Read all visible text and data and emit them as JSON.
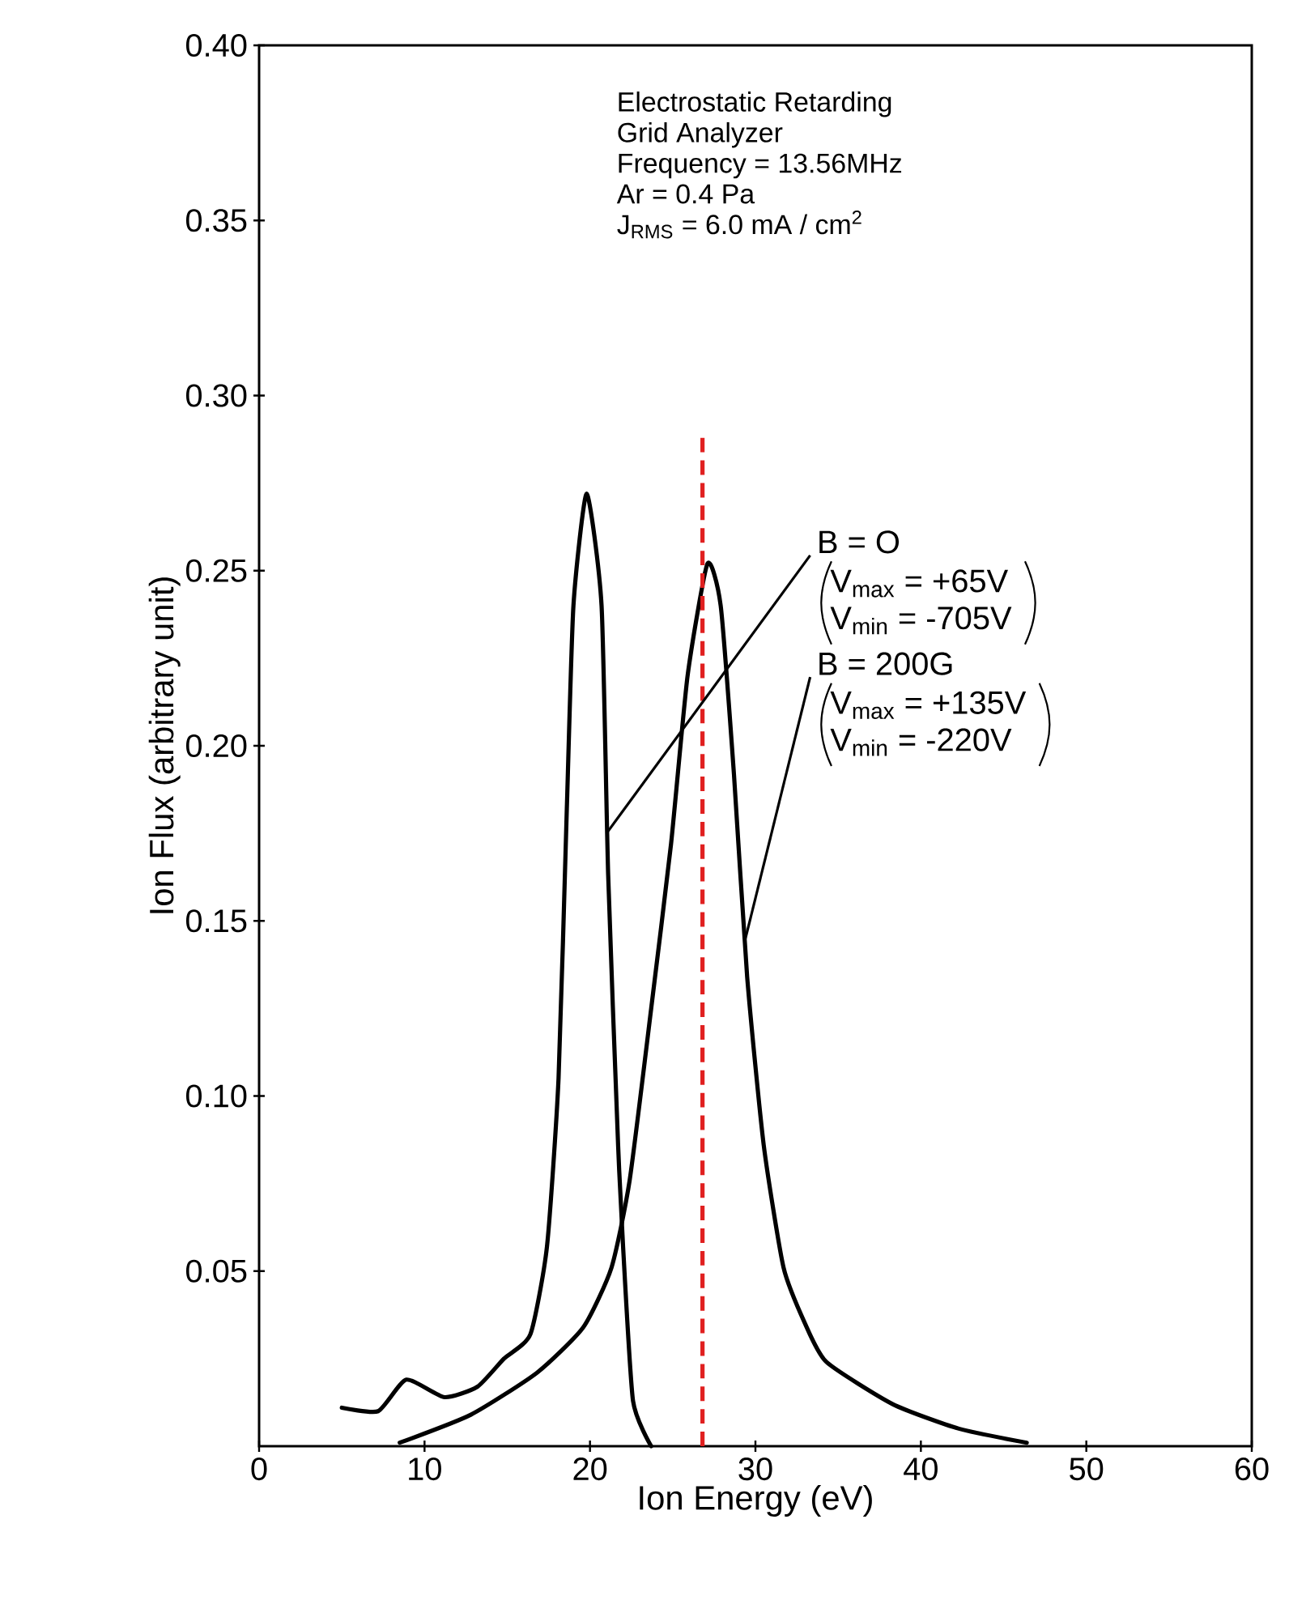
{
  "chart_data": {
    "type": "line",
    "xlabel": "Ion Energy (eV)",
    "ylabel": "Ion Flux (arbitrary unit)",
    "xlim": [
      0,
      60
    ],
    "xticks": [
      0,
      10,
      20,
      30,
      40,
      50,
      60
    ],
    "ylim": [
      0,
      0.4
    ],
    "yticks": [
      {
        "value": 0.05,
        "label": "0.05"
      },
      {
        "value": 0.1,
        "label": "0.10"
      },
      {
        "value": 0.15,
        "label": "0.15"
      },
      {
        "value": 0.2,
        "label": "0.20"
      },
      {
        "value": 0.25,
        "label": "0.25"
      },
      {
        "value": 0.3,
        "label": "0.30"
      },
      {
        "value": 0.35,
        "label": "0.35"
      },
      {
        "value": 0.4,
        "label": "0.40"
      }
    ],
    "line_style": "solid",
    "series": [
      {
        "color": "#000000",
        "x": [
          5.0,
          7.2,
          8.9,
          11.2,
          13.2,
          14.8,
          16.4,
          17.4,
          18.1,
          18.6,
          19.0,
          19.8,
          20.7,
          21.1,
          21.7,
          22.0,
          22.6,
          23.7
        ],
        "values": [
          0.011,
          0.01,
          0.019,
          0.014,
          0.017,
          0.025,
          0.032,
          0.057,
          0.105,
          0.182,
          0.24,
          0.272,
          0.24,
          0.163,
          0.086,
          0.057,
          0.013,
          0.0
        ]
      },
      {
        "color": "#000000",
        "x": [
          8.5,
          12.8,
          16.8,
          19.6,
          21.3,
          22.4,
          23.7,
          24.9,
          25.9,
          27.1,
          27.9,
          28.7,
          29.5,
          30.5,
          31.7,
          33.0,
          34.3,
          38.3,
          42.3,
          46.4
        ],
        "values": [
          0.001,
          0.009,
          0.021,
          0.034,
          0.051,
          0.076,
          0.125,
          0.172,
          0.22,
          0.252,
          0.24,
          0.192,
          0.134,
          0.086,
          0.051,
          0.035,
          0.024,
          0.012,
          0.005,
          0.001
        ]
      }
    ],
    "ref_lines": [
      {
        "axis": "x",
        "value": 26.8,
        "color": "#e02020",
        "line_style": "dashed"
      }
    ],
    "annotations": [
      "Electrostatic Retarding",
      "Grid Analyzer",
      "Frequency = 13.56MHz",
      "Ar = 0.4 Pa",
      "J$_{RMS}$ = 6.0 mA / cm$^{2}$",
      {
        "text": "B = O",
        "x": 21.0,
        "y": 0.175
      },
      "V$_{max}$ = +65V",
      "V$_{min}$ = -705V",
      {
        "text": "B = 200G",
        "x": 29.4,
        "y": 0.145
      },
      "V$_{max}$ = +135V",
      "V$_{min}$ = -220V"
    ]
  }
}
